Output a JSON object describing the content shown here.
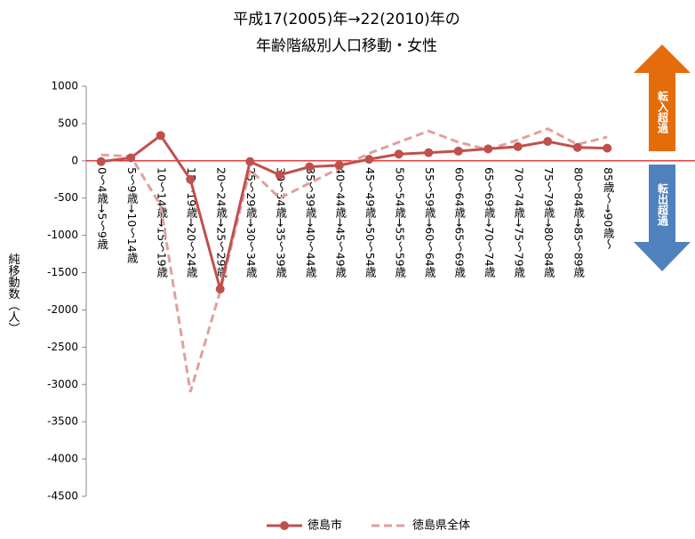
{
  "chart_data": {
    "type": "line",
    "title": [
      "平成17(2005)年→22(2010)年の",
      "年齢階級別人口移動・女性"
    ],
    "y_label": "純移動数（人）",
    "annotations": [
      "転入超過",
      "転出超過"
    ],
    "categories": [
      "0～4歳→5～9歳",
      "5～9歳→10～14歳",
      "10～14歳→15～19歳",
      "15～19歳→20～24歳",
      "20～24歳→25～29歳",
      "25～29歳→30～34歳",
      "30～34歳→35～39歳",
      "35～39歳→40～44歳",
      "40～44歳→45～49歳",
      "45～49歳→50～54歳",
      "50～54歳→55～59歳",
      "55～59歳→60～64歳",
      "60～64歳→65～69歳",
      "65～69歳→70～74歳",
      "70～74歳→75～79歳",
      "75～79歳→80～84歳",
      "80～84歳→85～89歳",
      "85歳～→90歳～"
    ],
    "series": [
      {
        "name": "徳島市",
        "color": "#c0504d",
        "dashed": false,
        "markers": true,
        "values": [
          -10,
          40,
          340,
          -250,
          -1720,
          -10,
          -190,
          -80,
          -60,
          20,
          90,
          110,
          130,
          160,
          190,
          260,
          180,
          170
        ]
      },
      {
        "name": "徳島県全体",
        "color": "#e0a09e",
        "dashed": true,
        "markers": false,
        "values": [
          80,
          60,
          -600,
          -3100,
          -1750,
          -120,
          -500,
          -300,
          -100,
          100,
          250,
          400,
          250,
          150,
          280,
          430,
          220,
          320
        ]
      }
    ],
    "ylim": [
      -4500,
      1000
    ],
    "yticks": [
      1000,
      500,
      0,
      -500,
      -1000,
      -1500,
      -2000,
      -2500,
      -3000,
      -3500,
      -4000,
      -4500
    ],
    "grid": false
  }
}
